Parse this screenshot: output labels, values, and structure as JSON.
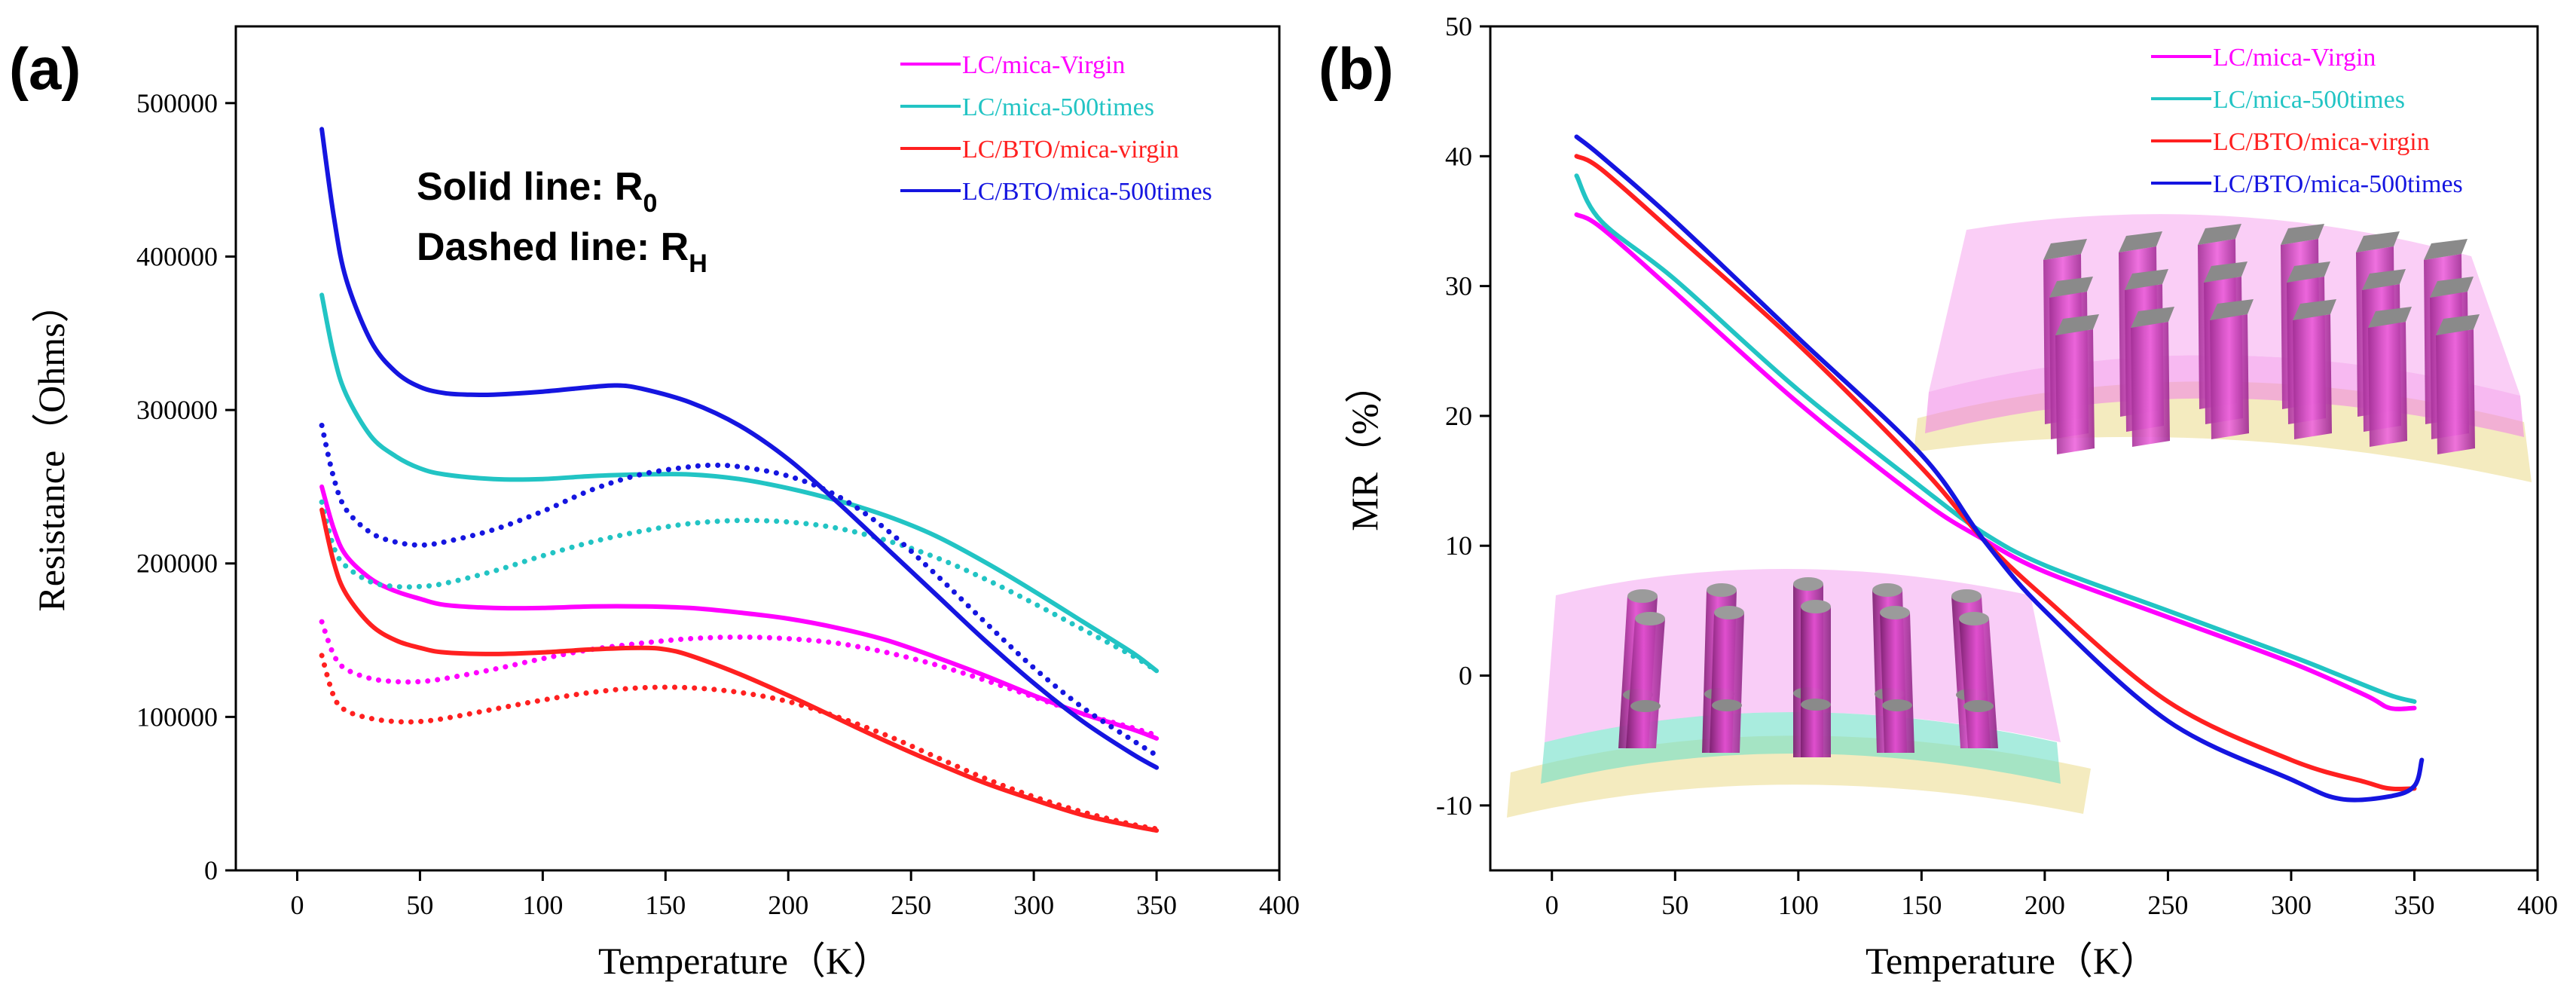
{
  "colors": {
    "magenta": "#ff00ff",
    "cyan": "#22c4c4",
    "red": "#ff2020",
    "blue": "#1515e0"
  },
  "annotation": {
    "solid": "Solid line: R",
    "solid_sub": "0",
    "dashed": "Dashed line: R",
    "dashed_sub": "H"
  },
  "chart_data": [
    {
      "panel_label": "(a)",
      "type": "line",
      "title": "",
      "xlabel": "Temperature（K）",
      "ylabel": "Resistance（Ohms）",
      "xlim": [
        -25,
        400
      ],
      "ylim": [
        0,
        550000
      ],
      "xticks": [
        0,
        50,
        100,
        150,
        200,
        250,
        300,
        350,
        400
      ],
      "yticks": [
        0,
        100000,
        200000,
        300000,
        400000,
        500000
      ],
      "grid": false,
      "legend_position": "top-right",
      "legend": [
        "LC/mica-Virgin",
        "LC/mica-500times",
        "LC/BTO/mica-virgin",
        "LC/BTO/mica-500times"
      ],
      "series": [
        {
          "name": "LC/mica-Virgin",
          "kind": "R0",
          "style": "solid",
          "color": "magenta",
          "x": [
            10,
            15,
            20,
            30,
            40,
            50,
            60,
            80,
            100,
            120,
            140,
            160,
            180,
            200,
            220,
            240,
            260,
            280,
            300,
            320,
            340,
            350
          ],
          "y": [
            250000,
            222000,
            205000,
            190000,
            182000,
            177000,
            173000,
            171000,
            171000,
            172000,
            172000,
            171000,
            168000,
            164000,
            158000,
            150000,
            139000,
            127000,
            114000,
            102000,
            92000,
            86000
          ]
        },
        {
          "name": "LC/mica-Virgin",
          "kind": "RH",
          "style": "dashed",
          "color": "magenta",
          "x": [
            10,
            15,
            20,
            30,
            40,
            50,
            60,
            80,
            100,
            120,
            140,
            160,
            180,
            200,
            220,
            240,
            260,
            280,
            300,
            320,
            340,
            350
          ],
          "y": [
            162000,
            140000,
            131000,
            125000,
            123000,
            123000,
            125000,
            131000,
            138000,
            144000,
            148000,
            151000,
            152000,
            151000,
            148000,
            142000,
            134000,
            124000,
            113000,
            102000,
            93000,
            88000
          ]
        },
        {
          "name": "LC/mica-500times",
          "kind": "R0",
          "style": "solid",
          "color": "cyan",
          "x": [
            10,
            15,
            20,
            30,
            40,
            50,
            60,
            80,
            100,
            120,
            140,
            160,
            180,
            200,
            220,
            240,
            260,
            280,
            300,
            320,
            340,
            350
          ],
          "y": [
            375000,
            335000,
            310000,
            283000,
            270000,
            262000,
            258000,
            255000,
            255000,
            257000,
            258000,
            258000,
            255000,
            249000,
            241000,
            231000,
            218000,
            201000,
            182000,
            162000,
            142000,
            130000
          ]
        },
        {
          "name": "LC/mica-500times",
          "kind": "RH",
          "style": "dashed",
          "color": "cyan",
          "x": [
            10,
            15,
            20,
            30,
            40,
            50,
            60,
            80,
            100,
            120,
            140,
            160,
            180,
            200,
            220,
            240,
            260,
            280,
            300,
            320,
            340,
            350
          ],
          "y": [
            240000,
            210000,
            198000,
            188000,
            185000,
            185000,
            187000,
            195000,
            205000,
            214000,
            221000,
            226000,
            228000,
            227000,
            223000,
            215000,
            204000,
            190000,
            174000,
            157000,
            140000,
            130000
          ]
        },
        {
          "name": "LC/BTO/mica-virgin",
          "kind": "R0",
          "style": "solid",
          "color": "red",
          "x": [
            10,
            15,
            20,
            30,
            40,
            50,
            60,
            80,
            100,
            120,
            140,
            150,
            160,
            180,
            200,
            220,
            240,
            260,
            280,
            300,
            320,
            340,
            350
          ],
          "y": [
            235000,
            200000,
            180000,
            160000,
            150000,
            145000,
            142000,
            141000,
            142000,
            144000,
            145000,
            144000,
            140000,
            128000,
            114000,
            99000,
            84000,
            70000,
            57000,
            46000,
            36000,
            29000,
            26000
          ]
        },
        {
          "name": "LC/BTO/mica-virgin",
          "kind": "RH",
          "style": "dashed",
          "color": "red",
          "x": [
            10,
            15,
            20,
            30,
            40,
            50,
            60,
            80,
            100,
            120,
            140,
            160,
            180,
            200,
            220,
            240,
            260,
            280,
            300,
            320,
            340,
            350
          ],
          "y": [
            140000,
            113000,
            104000,
            99000,
            97000,
            97000,
            99000,
            105000,
            111000,
            116000,
            119000,
            119000,
            116000,
            110000,
            100000,
            88000,
            74000,
            60000,
            48000,
            38000,
            30000,
            27000
          ]
        },
        {
          "name": "LC/BTO/mica-500times",
          "kind": "R0",
          "style": "solid",
          "color": "blue",
          "x": [
            10,
            15,
            20,
            30,
            40,
            50,
            60,
            70,
            80,
            100,
            120,
            130,
            140,
            160,
            180,
            200,
            220,
            240,
            260,
            280,
            300,
            320,
            340,
            350
          ],
          "y": [
            483000,
            425000,
            385000,
            345000,
            325000,
            315000,
            311000,
            310000,
            310000,
            312000,
            315000,
            316000,
            314000,
            305000,
            290000,
            268000,
            240000,
            210000,
            180000,
            150000,
            122000,
            97000,
            76000,
            67000
          ]
        },
        {
          "name": "LC/BTO/mica-500times",
          "kind": "RH",
          "style": "dashed",
          "color": "blue",
          "x": [
            10,
            15,
            20,
            30,
            40,
            50,
            60,
            80,
            100,
            120,
            140,
            160,
            170,
            180,
            200,
            220,
            240,
            260,
            280,
            300,
            320,
            340,
            350
          ],
          "y": [
            290000,
            255000,
            235000,
            220000,
            214000,
            212000,
            214000,
            222000,
            234000,
            248000,
            258000,
            263000,
            264000,
            263000,
            257000,
            244000,
            222000,
            193000,
            162000,
            132000,
            106000,
            85000,
            75000
          ]
        }
      ]
    },
    {
      "panel_label": "(b)",
      "type": "line",
      "title": "",
      "xlabel": "Temperature（K）",
      "ylabel": "MR（%）",
      "xlim": [
        -25,
        400
      ],
      "ylim": [
        -15,
        50
      ],
      "xticks": [
        0,
        50,
        100,
        150,
        200,
        250,
        300,
        350,
        400
      ],
      "yticks": [
        -10,
        0,
        10,
        20,
        30,
        40,
        50
      ],
      "grid": false,
      "legend_position": "top-right",
      "legend": [
        "LC/mica-Virgin",
        "LC/mica-500times",
        "LC/BTO/mica-virgin",
        "LC/BTO/mica-500times"
      ],
      "series": [
        {
          "name": "LC/mica-Virgin",
          "color": "magenta",
          "x": [
            10,
            20,
            50,
            100,
            150,
            175,
            200,
            250,
            300,
            330,
            340,
            350
          ],
          "y": [
            35.5,
            34.5,
            29.5,
            21.0,
            13.5,
            10.5,
            8.0,
            4.5,
            1.0,
            -1.5,
            -2.5,
            -2.5
          ]
        },
        {
          "name": "LC/mica-500times",
          "color": "cyan",
          "x": [
            10,
            20,
            50,
            100,
            150,
            175,
            200,
            250,
            300,
            320,
            340,
            350
          ],
          "y": [
            38.5,
            35.0,
            30.5,
            22.0,
            14.5,
            11.0,
            8.5,
            5.0,
            1.5,
            0.0,
            -1.5,
            -2.0
          ]
        },
        {
          "name": "LC/BTO/mica-virgin",
          "color": "red",
          "x": [
            10,
            20,
            50,
            100,
            150,
            175,
            200,
            250,
            300,
            330,
            340,
            350
          ],
          "y": [
            40.0,
            39.0,
            34.0,
            25.5,
            16.0,
            10.5,
            6.0,
            -2.0,
            -6.5,
            -8.2,
            -8.7,
            -8.7
          ]
        },
        {
          "name": "LC/BTO/mica-500times",
          "color": "blue",
          "x": [
            10,
            20,
            50,
            100,
            150,
            175,
            200,
            250,
            300,
            320,
            340,
            350,
            353
          ],
          "y": [
            41.5,
            40.0,
            35.0,
            26.0,
            17.0,
            10.5,
            5.0,
            -3.5,
            -8.0,
            -9.5,
            -9.3,
            -8.5,
            -6.5
          ]
        }
      ]
    }
  ]
}
